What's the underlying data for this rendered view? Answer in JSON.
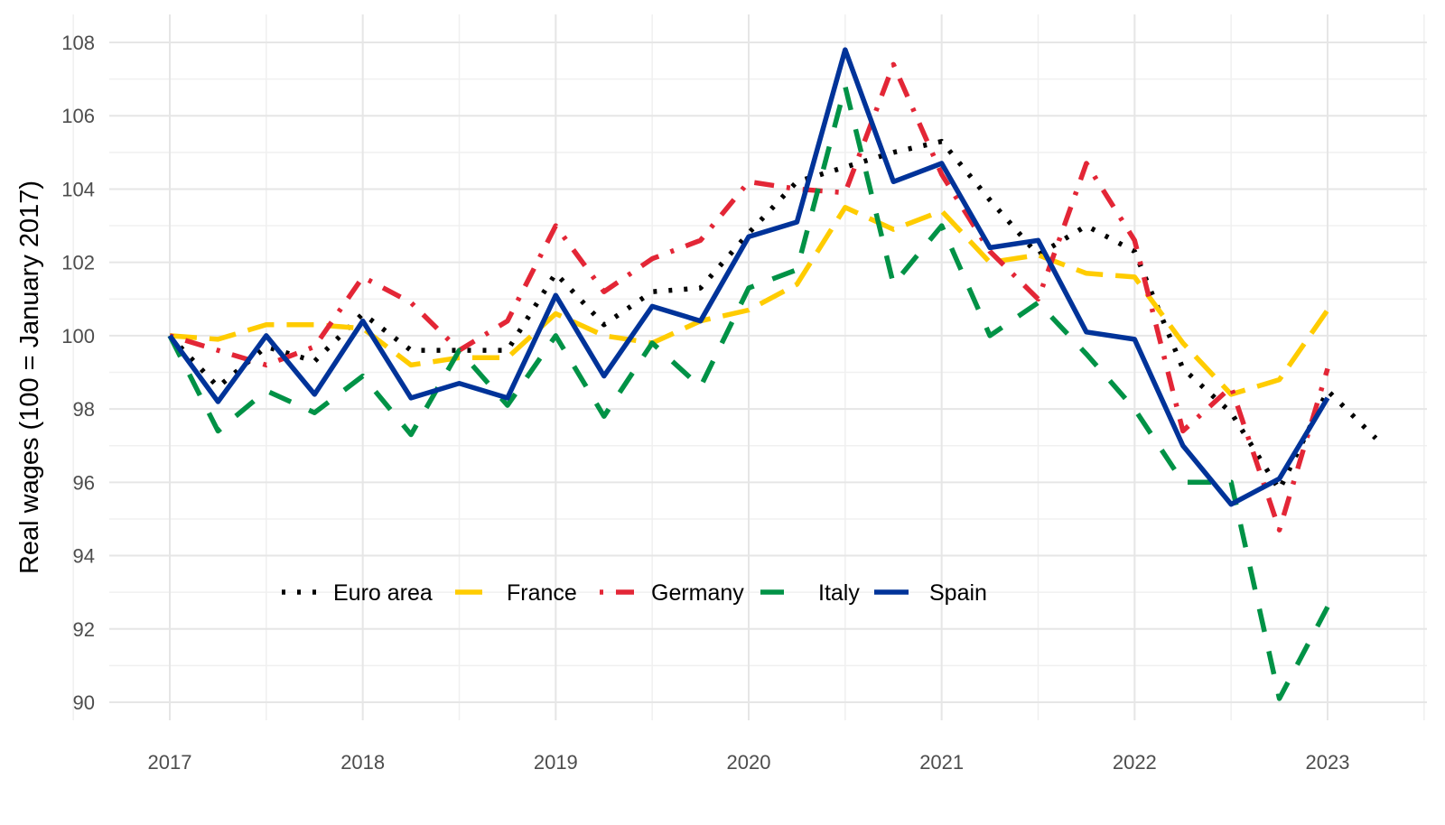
{
  "chart_data": {
    "type": "line",
    "title": "",
    "xlabel": "",
    "ylabel": "Real wages (100 = January 2017)",
    "x": [
      2017.0,
      2017.25,
      2017.5,
      2017.75,
      2018.0,
      2018.25,
      2018.5,
      2018.75,
      2019.0,
      2019.25,
      2019.5,
      2019.75,
      2020.0,
      2020.25,
      2020.5,
      2020.75,
      2021.0,
      2021.25,
      2021.5,
      2021.75,
      2022.0,
      2022.25,
      2022.5,
      2022.75,
      2023.0,
      2023.25
    ],
    "xlim": [
      2016.7,
      2023.5
    ],
    "ylim": [
      89.2,
      108.6
    ],
    "x_ticks": [
      2017,
      2018,
      2019,
      2020,
      2021,
      2022,
      2023
    ],
    "x_tick_labels": [
      "2017",
      "2018",
      "2019",
      "2020",
      "2021",
      "2022",
      "2023"
    ],
    "y_ticks": [
      90,
      92,
      94,
      96,
      98,
      100,
      102,
      104,
      106,
      108
    ],
    "y_tick_labels": [
      "90",
      "92",
      "94",
      "96",
      "98",
      "100",
      "102",
      "104",
      "106",
      "108"
    ],
    "grid": true,
    "legend_position": "bottom-left inside, horizontal",
    "series": [
      {
        "name": "Euro area",
        "color": "#000000",
        "dash": "dotted",
        "values": [
          100.0,
          98.6,
          99.7,
          99.3,
          100.6,
          99.6,
          99.6,
          99.6,
          101.7,
          100.3,
          101.2,
          101.3,
          102.8,
          104.2,
          104.6,
          105.0,
          105.3,
          103.7,
          102.2,
          103.0,
          102.3,
          99.1,
          97.9,
          95.8,
          98.5,
          97.2
        ]
      },
      {
        "name": "France",
        "color": "#FFCC00",
        "dash": "dashed",
        "values": [
          100.0,
          99.9,
          100.3,
          100.3,
          100.2,
          99.2,
          99.4,
          99.4,
          100.6,
          100.0,
          99.8,
          100.4,
          100.7,
          101.4,
          103.5,
          102.9,
          103.4,
          102.0,
          102.2,
          101.7,
          101.6,
          99.8,
          98.4,
          98.8,
          100.7,
          null
        ]
      },
      {
        "name": "Germany",
        "color": "#E32636",
        "dash": "dashdot",
        "values": [
          100.0,
          99.6,
          99.2,
          99.7,
          101.6,
          100.9,
          99.6,
          100.4,
          103.0,
          101.2,
          102.1,
          102.6,
          104.2,
          104.0,
          103.9,
          107.4,
          104.4,
          102.3,
          101.0,
          104.7,
          102.6,
          97.4,
          98.6,
          94.7,
          99.1,
          null
        ]
      },
      {
        "name": "Italy",
        "color": "#009246",
        "dash": "longdash",
        "values": [
          100.0,
          97.4,
          98.5,
          97.9,
          98.9,
          97.3,
          99.6,
          98.1,
          100.0,
          97.8,
          99.8,
          98.6,
          101.3,
          101.8,
          106.8,
          101.4,
          103.0,
          100.0,
          100.9,
          99.5,
          98.0,
          96.0,
          96.0,
          90.1,
          92.6,
          null
        ]
      },
      {
        "name": "Spain",
        "color": "#003399",
        "dash": "solid",
        "values": [
          100.0,
          98.2,
          100.0,
          98.4,
          100.4,
          98.3,
          98.7,
          98.3,
          101.1,
          98.9,
          100.8,
          100.4,
          102.7,
          103.1,
          107.8,
          104.2,
          104.7,
          102.4,
          102.6,
          100.1,
          99.9,
          97.0,
          95.4,
          96.1,
          98.3,
          null
        ]
      }
    ]
  }
}
